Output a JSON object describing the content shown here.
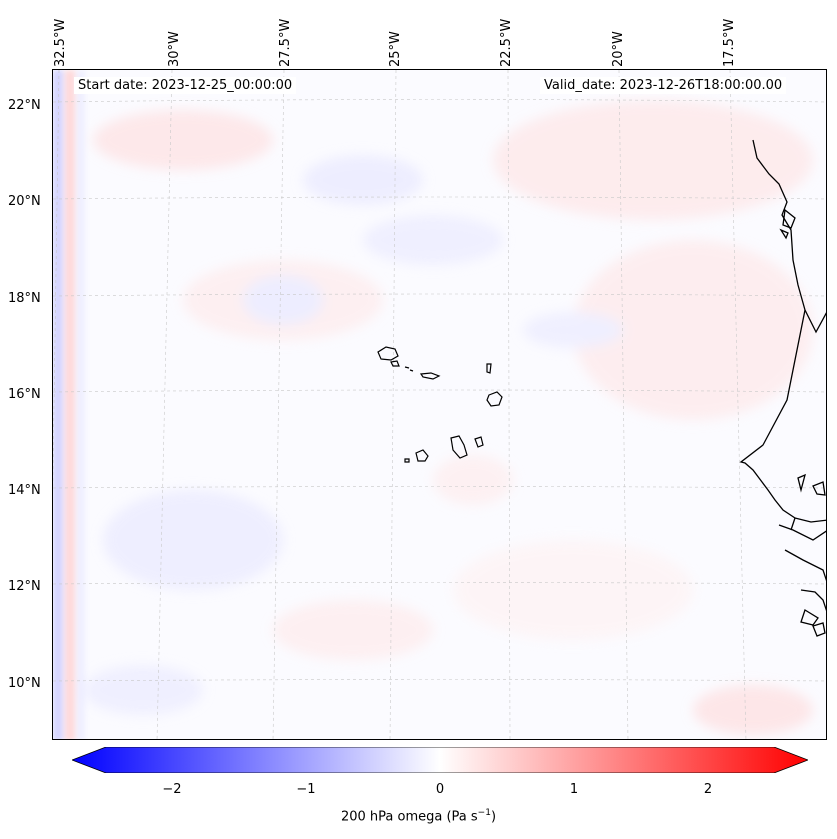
{
  "header": {
    "start_date": "Start date: 2023-12-25_00:00:00",
    "valid_date": "Valid_date: 2023-12-26T18:00:00.00"
  },
  "axes": {
    "lon_ticks": [
      "32.5°W",
      "30°W",
      "27.5°W",
      "25°W",
      "22.5°W",
      "20°W",
      "17.5°W"
    ],
    "lat_ticks": [
      "22°N",
      "20°N",
      "18°N",
      "16°N",
      "14°N",
      "12°N",
      "10°N"
    ]
  },
  "colorbar": {
    "ticks": [
      "−2",
      "−1",
      "0",
      "1",
      "2"
    ],
    "range": [
      -2.6,
      2.6
    ],
    "negative_color": "#0000ff",
    "positive_color": "#ff0000",
    "label_prefix": "200 hPa omega (Pa s",
    "label_sup": "−1",
    "label_suffix": ")"
  }
}
